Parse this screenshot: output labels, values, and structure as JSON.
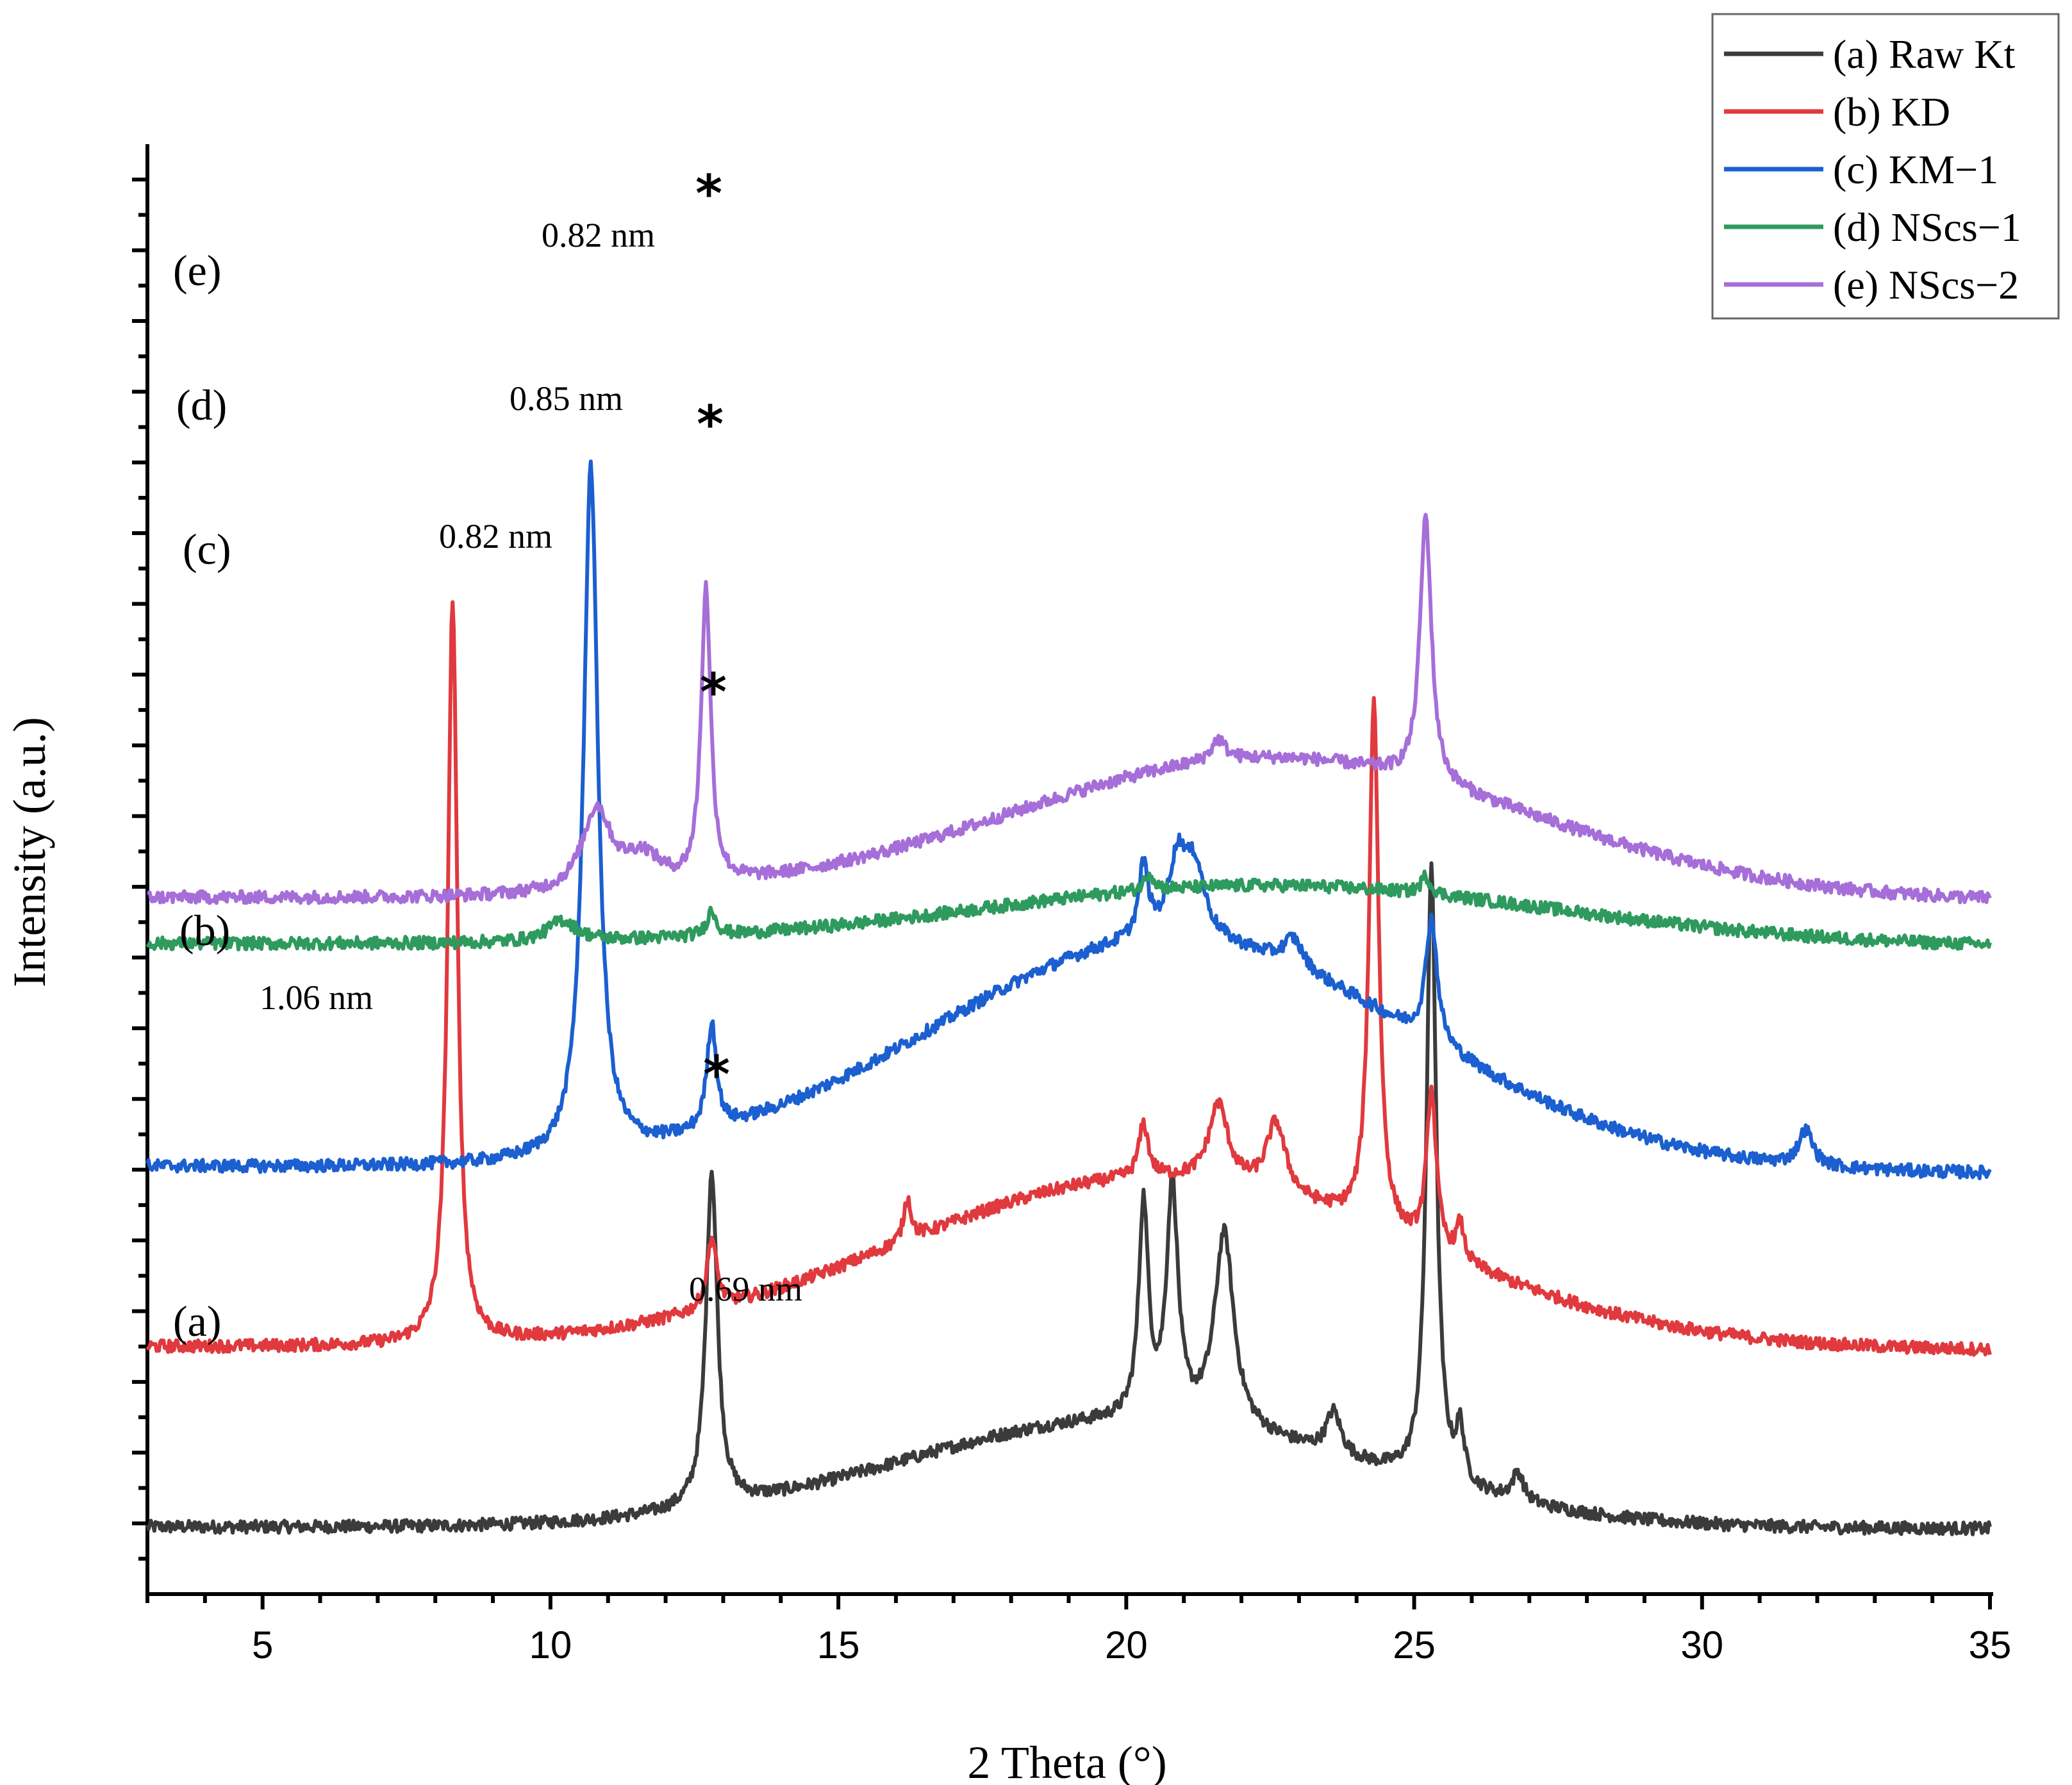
{
  "chart_data": {
    "type": "line",
    "title": "",
    "xlabel": "2 Theta (°)",
    "ylabel": "Intensity (a.u.)",
    "xlim": [
      3,
      35
    ],
    "x_ticks": [
      5,
      10,
      15,
      20,
      25,
      30,
      35
    ],
    "x_tick_labels": [
      "5",
      "10",
      "15",
      "20",
      "25",
      "30",
      "35"
    ],
    "legend_position": "top-right",
    "series": [
      {
        "name": "(a) Raw Kt",
        "curve_label": "(a)",
        "color": "#3b3b3b",
        "baseline_start": 1.9,
        "baseline_end": 1.85,
        "peaks": [
          {
            "x": 12.8,
            "h": 9.5,
            "w": 0.12
          },
          {
            "x": 20.3,
            "h": 6.0,
            "w": 0.1
          },
          {
            "x": 20.8,
            "h": 6.5,
            "w": 0.12
          },
          {
            "x": 21.7,
            "h": 5.5,
            "w": 0.2
          },
          {
            "x": 23.6,
            "h": 1.2,
            "w": 0.15
          },
          {
            "x": 25.3,
            "h": 17.5,
            "w": 0.1
          },
          {
            "x": 25.8,
            "h": 1.5,
            "w": 0.08
          },
          {
            "x": 26.8,
            "h": 0.8,
            "w": 0.12
          }
        ],
        "hump": {
          "x": 20.0,
          "h": 3.0,
          "w": 4.0
        },
        "annotations": [
          {
            "text": "0.69 nm",
            "x": 13.0
          }
        ]
      },
      {
        "name": "(b) KD",
        "curve_label": "(b)",
        "color": "#e0393e",
        "baseline_start": 7.0,
        "baseline_end": 6.9,
        "peaks": [
          {
            "x": 8.3,
            "h": 21.0,
            "w": 0.1
          },
          {
            "x": 12.8,
            "h": 2.0,
            "w": 0.1
          },
          {
            "x": 16.2,
            "h": 1.2,
            "w": 0.08
          },
          {
            "x": 20.3,
            "h": 1.5,
            "w": 0.1
          },
          {
            "x": 21.6,
            "h": 2.2,
            "w": 0.2
          },
          {
            "x": 22.6,
            "h": 2.0,
            "w": 0.2
          },
          {
            "x": 24.3,
            "h": 15.0,
            "w": 0.1
          },
          {
            "x": 25.3,
            "h": 4.5,
            "w": 0.1
          },
          {
            "x": 25.8,
            "h": 1.0,
            "w": 0.08
          }
        ],
        "hump": {
          "x": 20.5,
          "h": 4.8,
          "w": 4.5
        },
        "annotations": [
          {
            "text": "1.06 nm",
            "x": 5.0
          }
        ]
      },
      {
        "name": "(c) KM−1",
        "curve_label": "(c)",
        "color": "#1b5fd0",
        "baseline_start": 12.1,
        "baseline_end": 11.9,
        "peaks": [
          {
            "x": 10.7,
            "h": 19.5,
            "w": 0.15
          },
          {
            "x": 12.8,
            "h": 3.0,
            "w": 0.1
          },
          {
            "x": 20.3,
            "h": 2.0,
            "w": 0.1
          },
          {
            "x": 20.9,
            "h": 2.2,
            "w": 0.2
          },
          {
            "x": 21.2,
            "h": 1.8,
            "w": 0.2
          },
          {
            "x": 22.9,
            "h": 0.8,
            "w": 0.2
          },
          {
            "x": 25.3,
            "h": 3.5,
            "w": 0.12
          },
          {
            "x": 31.8,
            "h": 1.0,
            "w": 0.15
          }
        ],
        "hump": {
          "x": 20.8,
          "h": 6.5,
          "w": 4.2
        },
        "annotations": [
          {
            "text": "0.82 nm",
            "x": 9.0
          }
        ]
      },
      {
        "name": "(d) NScs−1",
        "curve_label": "(d)",
        "color": "#2e9a5e",
        "baseline_start": 18.4,
        "baseline_end": 18.3,
        "peaks": [
          {
            "x": 10.2,
            "h": 0.6,
            "w": 0.3
          },
          {
            "x": 12.8,
            "h": 0.7,
            "w": 0.1
          },
          {
            "x": 20.4,
            "h": 0.5,
            "w": 0.1
          },
          {
            "x": 25.2,
            "h": 0.5,
            "w": 0.1
          }
        ],
        "hump": {
          "x": 22.5,
          "h": 1.7,
          "w": 5.0
        },
        "annotations": [
          {
            "text": "0.85 nm",
            "x": 9.5
          }
        ]
      },
      {
        "name": "(e) NScs−2",
        "curve_label": "(e)",
        "color": "#a66ed8",
        "baseline_start": 19.7,
        "baseline_end": 19.6,
        "peaks": [
          {
            "x": 10.8,
            "h": 2.3,
            "w": 0.3
          },
          {
            "x": 11.6,
            "h": 0.9,
            "w": 0.4
          },
          {
            "x": 12.7,
            "h": 8.3,
            "w": 0.1
          },
          {
            "x": 21.6,
            "h": 0.6,
            "w": 0.15
          },
          {
            "x": 25.2,
            "h": 7.5,
            "w": 0.12
          }
        ],
        "hump": {
          "x": 22.5,
          "h": 4.0,
          "w": 4.5
        },
        "annotations": [
          {
            "text": "0.82 nm",
            "x": 10.0
          }
        ]
      }
    ],
    "star_markers": [
      "*",
      "*",
      "*",
      "*"
    ]
  }
}
